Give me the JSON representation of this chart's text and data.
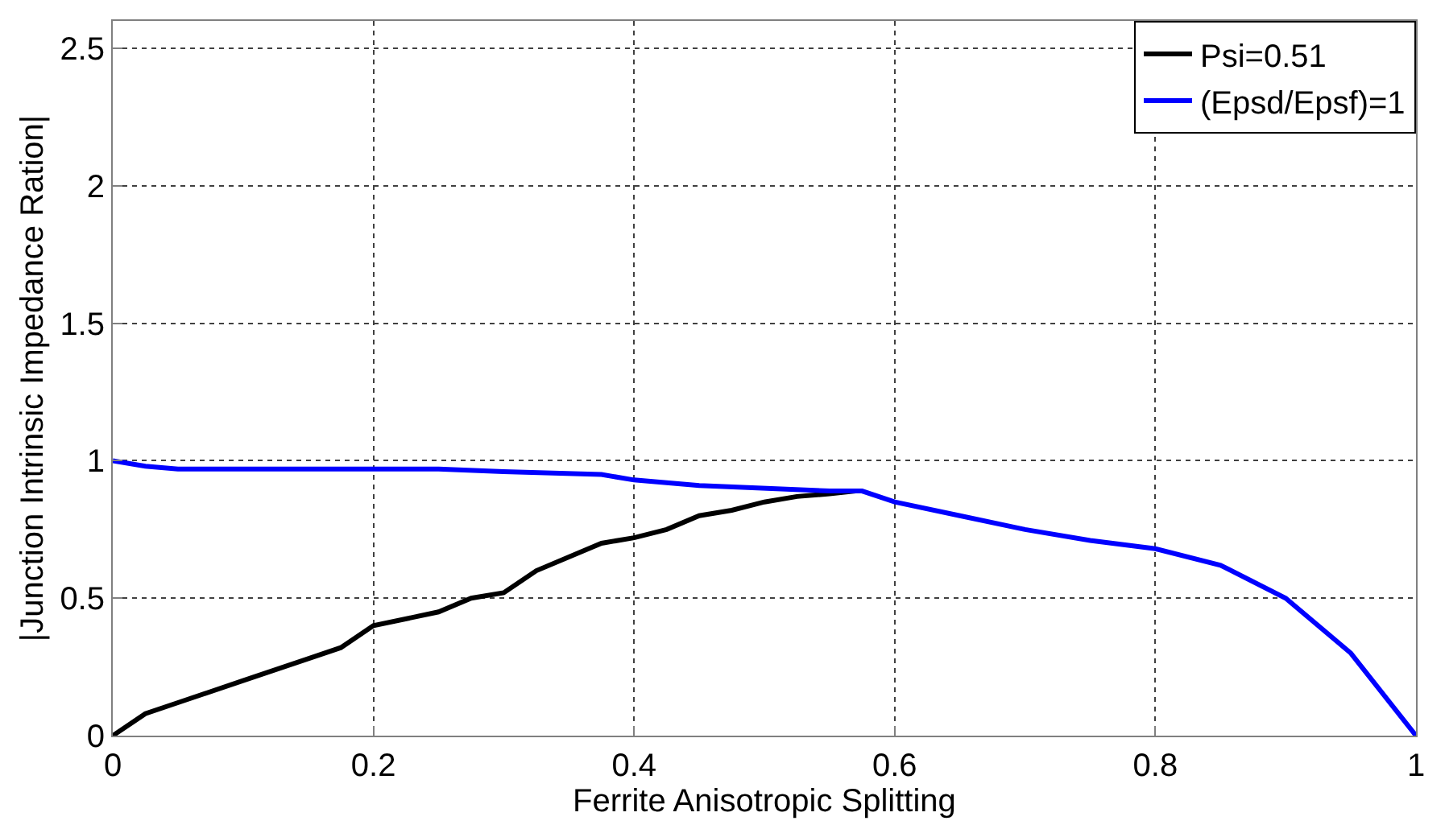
{
  "chart_data": {
    "type": "line",
    "xlabel": "Ferrite Anisotropic Splitting",
    "ylabel": "|Junction Intrinsic Impedance Ration|",
    "xlim": [
      0,
      1
    ],
    "ylim": [
      0,
      2.6
    ],
    "xticks": [
      0,
      0.2,
      0.4,
      0.6,
      0.8,
      1
    ],
    "yticks": [
      0,
      0.5,
      1,
      1.5,
      2,
      2.5
    ],
    "grid": true,
    "legend": "top right",
    "marker": "none",
    "line_style": "solid",
    "series": [
      {
        "name": "Psi=0.51",
        "color": "#000000",
        "x": [
          0,
          0.025,
          0.05,
          0.1,
          0.15,
          0.175,
          0.2,
          0.25,
          0.275,
          0.3,
          0.325,
          0.35,
          0.375,
          0.4,
          0.425,
          0.45,
          0.475,
          0.5,
          0.525,
          0.55,
          0.57
        ],
        "values": [
          0,
          0.08,
          0.12,
          0.2,
          0.28,
          0.32,
          0.4,
          0.45,
          0.5,
          0.52,
          0.6,
          0.65,
          0.7,
          0.72,
          0.75,
          0.8,
          0.82,
          0.85,
          0.87,
          0.88,
          0.89
        ]
      },
      {
        "name": "(Epsd/Epsf)=1",
        "color": "#0000ff",
        "x": [
          0,
          0.025,
          0.05,
          0.1,
          0.2,
          0.25,
          0.3,
          0.375,
          0.4,
          0.45,
          0.55,
          0.575,
          0.6,
          0.65,
          0.7,
          0.75,
          0.8,
          0.85,
          0.9,
          0.95,
          1
        ],
        "values": [
          1,
          0.98,
          0.97,
          0.97,
          0.97,
          0.97,
          0.96,
          0.95,
          0.93,
          0.91,
          0.89,
          0.89,
          0.85,
          0.8,
          0.75,
          0.71,
          0.68,
          0.62,
          0.5,
          0.3,
          0
        ]
      }
    ]
  }
}
